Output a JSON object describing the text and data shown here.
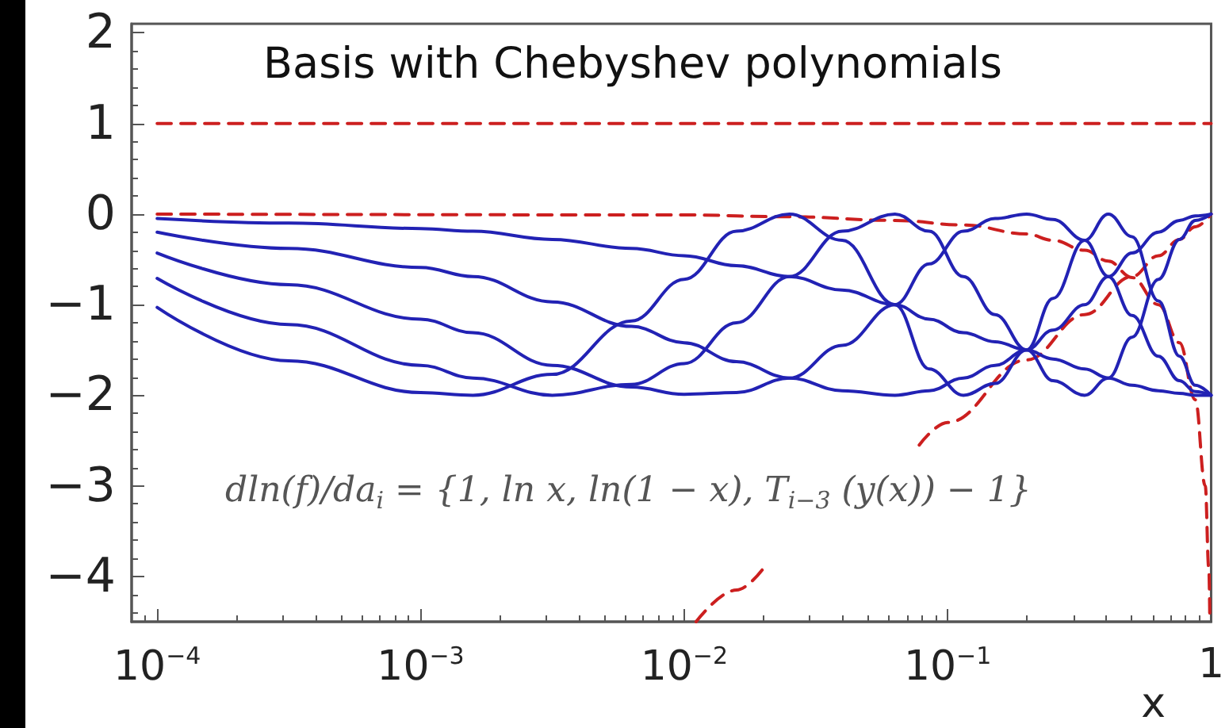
{
  "chart_data": {
    "type": "line",
    "title": "Basis with Chebyshev polynomials",
    "xlabel": "x",
    "log": "x",
    "annotations": [
      "dln(f)/da$_{i}$ = {1, ln x, ln(1 − x), T$_{i−3}$ (y(x)) − 1}"
    ],
    "xlim": [
      8e-05,
      1
    ],
    "ylim": [
      -4.5,
      2.1
    ],
    "xticks": [
      {
        "value": 0.0001,
        "label": "10$^{−4}$"
      },
      {
        "value": 0.001,
        "label": "10$^{−3}$"
      },
      {
        "value": 0.01,
        "label": "10$^{−2}$"
      },
      {
        "value": 0.1,
        "label": "10$^{−1}$"
      },
      1
    ],
    "yticks": [
      -4,
      -3,
      -2,
      -1,
      0,
      1,
      2
    ],
    "marker": "none",
    "x": [
      0.0001,
      0.000316,
      0.001,
      0.00158,
      0.00316,
      0.00631,
      0.01,
      0.0158,
      0.0251,
      0.0398,
      0.0631,
      0.0851,
      0.1148,
      0.1514,
      0.1995,
      0.2512,
      0.3311,
      0.4074,
      0.5012,
      0.631,
      0.7586,
      0.871,
      1
    ],
    "series": [
      {
        "color": "#cc1f1f",
        "line_style": "dashed",
        "x": [
          0.0001,
          1
        ],
        "values": [
          1,
          1
        ]
      },
      {
        "color": "#cc1f1f",
        "line_style": "dashed",
        "x": [
          0.0111,
          0.0158,
          0.02,
          0.04,
          0.078,
          0.1,
          0.1995,
          0.3311,
          0.5012,
          0.631,
          0.7586,
          0.871,
          1
        ],
        "values": [
          -4.5,
          -4.15,
          -3.91,
          null,
          -2.55,
          -2.3,
          -1.61,
          -1.11,
          -0.69,
          -0.46,
          -0.28,
          -0.14,
          0
        ]
      },
      {
        "color": "#cc1f1f",
        "line_style": "dashed",
        "x": [
          0.0001,
          0.01,
          0.0251,
          0.0631,
          0.1148,
          0.1995,
          0.2512,
          0.3311,
          0.4074,
          0.5012,
          0.631,
          0.7586,
          0.871,
          0.95,
          0.98,
          0.989
        ],
        "values": [
          0,
          -0.01,
          -0.03,
          -0.07,
          -0.12,
          -0.22,
          -0.29,
          -0.4,
          -0.52,
          -0.7,
          -1,
          -1.42,
          -2.05,
          -3,
          -3.91,
          -4.5
        ]
      },
      {
        "color": "#2222b4",
        "line_style": "solid",
        "values": [
          -0.05,
          -0.1,
          -0.16,
          -0.19,
          -0.28,
          -0.38,
          -0.46,
          -0.57,
          -0.69,
          -0.84,
          -1,
          -1.16,
          -1.31,
          -1.41,
          -1.5,
          -1.6,
          -1.71,
          -1.81,
          -1.89,
          -1.95,
          -1.98,
          -2,
          -2
        ]
      },
      {
        "color": "#2222b4",
        "line_style": "solid",
        "values": [
          -0.2,
          -0.38,
          -0.59,
          -0.69,
          -0.97,
          -1.24,
          -1.42,
          -1.63,
          -1.81,
          -1.95,
          -2,
          -1.95,
          -1.81,
          -1.67,
          -1.5,
          -1.28,
          -1,
          -0.69,
          -0.43,
          -0.2,
          -0.07,
          -0.02,
          0
        ]
      },
      {
        "color": "#2222b4",
        "line_style": "solid",
        "values": [
          -0.43,
          -0.78,
          -1.16,
          -1.31,
          -1.67,
          -1.91,
          -1.99,
          -1.97,
          -1.81,
          -1.45,
          -1,
          -0.55,
          -0.19,
          -0.05,
          0,
          -0.06,
          -0.29,
          -0.69,
          -1.12,
          -1.57,
          -1.84,
          -1.96,
          -2
        ]
      },
      {
        "color": "#2222b4",
        "line_style": "solid",
        "values": [
          -0.71,
          -1.22,
          -1.67,
          -1.81,
          -2,
          -1.88,
          -1.65,
          -1.2,
          -0.69,
          -0.19,
          0,
          -0.19,
          -0.69,
          -1.11,
          -1.5,
          -1.84,
          -2,
          -1.81,
          -1.36,
          -0.72,
          -0.28,
          -0.07,
          0
        ]
      },
      {
        "color": "#2222b4",
        "line_style": "solid",
        "values": [
          -1.03,
          -1.62,
          -1.97,
          -2,
          -1.77,
          -1.18,
          -0.72,
          -0.19,
          0,
          -0.29,
          -1,
          -1.71,
          -2,
          -1.87,
          -1.5,
          -0.93,
          -0.29,
          0,
          -0.25,
          -0.96,
          -1.57,
          -1.89,
          -2
        ]
      }
    ]
  }
}
